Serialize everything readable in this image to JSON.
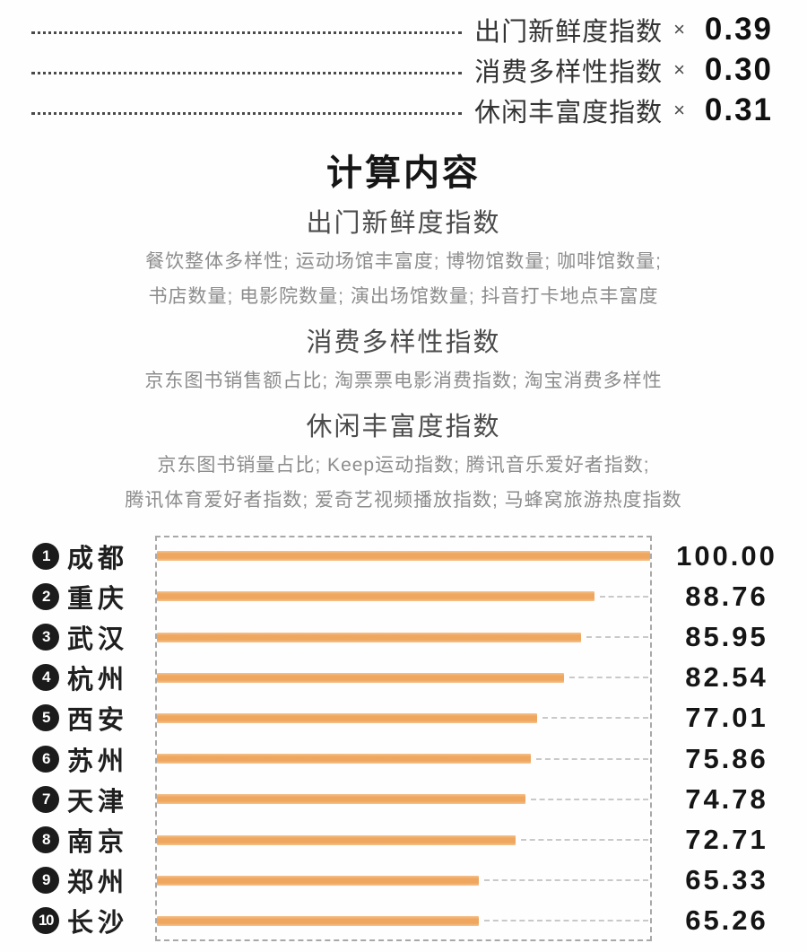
{
  "weights": {
    "rows": [
      {
        "label": "出门新鲜度指数",
        "times": "×",
        "value": "0.39"
      },
      {
        "label": "消费多样性指数",
        "times": "×",
        "value": "0.30"
      },
      {
        "label": "休闲丰富度指数",
        "times": "×",
        "value": "0.31"
      }
    ]
  },
  "calculation": {
    "title": "计算内容",
    "sections": [
      {
        "heading": "出门新鲜度指数",
        "lines": [
          "餐饮整体多样性; 运动场馆丰富度; 博物馆数量; 咖啡馆数量;",
          "书店数量; 电影院数量; 演出场馆数量; 抖音打卡地点丰富度"
        ]
      },
      {
        "heading": "消费多样性指数",
        "lines": [
          "京东图书销售额占比; 淘票票电影消费指数; 淘宝消费多样性"
        ]
      },
      {
        "heading": "休闲丰富度指数",
        "lines": [
          "京东图书销量占比; Keep运动指数; 腾讯音乐爱好者指数;",
          "腾讯体育爱好者指数; 爱奇艺视频播放指数; 马蜂窝旅游热度指数"
        ]
      }
    ]
  },
  "chart_data": {
    "type": "bar",
    "orientation": "horizontal",
    "categories": [
      "成都",
      "重庆",
      "武汉",
      "杭州",
      "西安",
      "苏州",
      "天津",
      "南京",
      "郑州",
      "长沙"
    ],
    "ranks": [
      "1",
      "2",
      "3",
      "4",
      "5",
      "6",
      "7",
      "8",
      "9",
      "10"
    ],
    "values": [
      100.0,
      88.76,
      85.95,
      82.54,
      77.01,
      75.86,
      74.78,
      72.71,
      65.33,
      65.26
    ],
    "value_labels": [
      "100.00",
      "88.76",
      "85.95",
      "82.54",
      "77.01",
      "75.86",
      "74.78",
      "72.71",
      "65.33",
      "65.26"
    ],
    "xlim": [
      0,
      100
    ],
    "grid": "dashed-frame",
    "legend": "none",
    "bar_color": "#efa65f"
  },
  "colors": {
    "background": "#ffffff",
    "bar": "#efa65f",
    "rank_badge": "#1b1b1b",
    "text_dark": "#1f1f1f",
    "text_gray": "#8c8c8c",
    "dashed_frame": "#a8a8a8",
    "leader_dash": "#c9c9c9"
  }
}
